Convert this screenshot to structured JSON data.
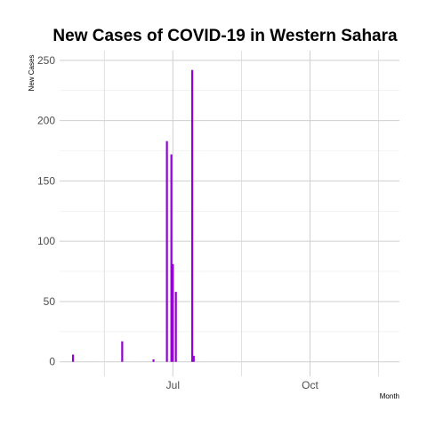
{
  "chart_data": {
    "type": "bar",
    "title": "New Cases of COVID-19 in Western Sahara",
    "xlabel": "Month",
    "ylabel": "New Cases",
    "x_axis": {
      "kind": "date",
      "range": [
        "2020-04-16",
        "2020-11-30"
      ],
      "ticks": [
        {
          "date": "2020-07-01",
          "label": "Jul"
        },
        {
          "date": "2020-10-01",
          "label": "Oct"
        }
      ],
      "minor_gridlines": [
        "2020-05-16",
        "2020-08-16",
        "2020-11-16"
      ]
    },
    "ylim": [
      -12,
      258
    ],
    "yticks": [
      0,
      50,
      100,
      150,
      200,
      250
    ],
    "grid": true,
    "bar_color": "#9400D3",
    "points": [
      {
        "date": "2020-04-25",
        "value": 6
      },
      {
        "date": "2020-05-28",
        "value": 17
      },
      {
        "date": "2020-06-18",
        "value": 2
      },
      {
        "date": "2020-06-27",
        "value": 183
      },
      {
        "date": "2020-06-30",
        "value": 172
      },
      {
        "date": "2020-07-01",
        "value": 81
      },
      {
        "date": "2020-07-03",
        "value": 58
      },
      {
        "date": "2020-07-14",
        "value": 242
      },
      {
        "date": "2020-07-15",
        "value": 5
      }
    ]
  }
}
